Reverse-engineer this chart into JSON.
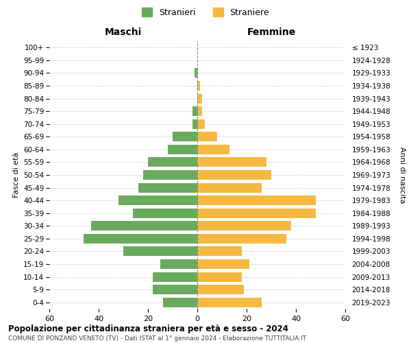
{
  "age_groups": [
    "100+",
    "95-99",
    "90-94",
    "85-89",
    "80-84",
    "75-79",
    "70-74",
    "65-69",
    "60-64",
    "55-59",
    "50-54",
    "45-49",
    "40-44",
    "35-39",
    "30-34",
    "25-29",
    "20-24",
    "15-19",
    "10-14",
    "5-9",
    "0-4"
  ],
  "birth_years": [
    "≤ 1923",
    "1924-1928",
    "1929-1933",
    "1934-1938",
    "1939-1943",
    "1944-1948",
    "1949-1953",
    "1954-1958",
    "1959-1963",
    "1964-1968",
    "1969-1973",
    "1974-1978",
    "1979-1983",
    "1984-1988",
    "1989-1993",
    "1994-1998",
    "1999-2003",
    "2004-2008",
    "2009-2013",
    "2014-2018",
    "2019-2023"
  ],
  "males": [
    0,
    0,
    1,
    0,
    0,
    2,
    2,
    10,
    12,
    20,
    22,
    24,
    32,
    26,
    43,
    46,
    30,
    15,
    18,
    18,
    14
  ],
  "females": [
    0,
    0,
    0,
    1,
    2,
    2,
    3,
    8,
    13,
    28,
    30,
    26,
    48,
    48,
    38,
    36,
    18,
    21,
    18,
    19,
    26
  ],
  "male_color": "#6aaa5e",
  "female_color": "#f5b942",
  "title": "Popolazione per cittadinanza straniera per età e sesso - 2024",
  "subtitle": "COMUNE DI PONZANO VENETO (TV) - Dati ISTAT al 1° gennaio 2024 - Elaborazione TUTTITALIA.IT",
  "label_maschi": "Maschi",
  "label_femmine": "Femmine",
  "ylabel_left": "Fasce di età",
  "ylabel_right": "Anni di nascita",
  "legend_male": "Stranieri",
  "legend_female": "Straniere",
  "xlim": 60,
  "background_color": "#ffffff",
  "grid_color": "#cccccc"
}
